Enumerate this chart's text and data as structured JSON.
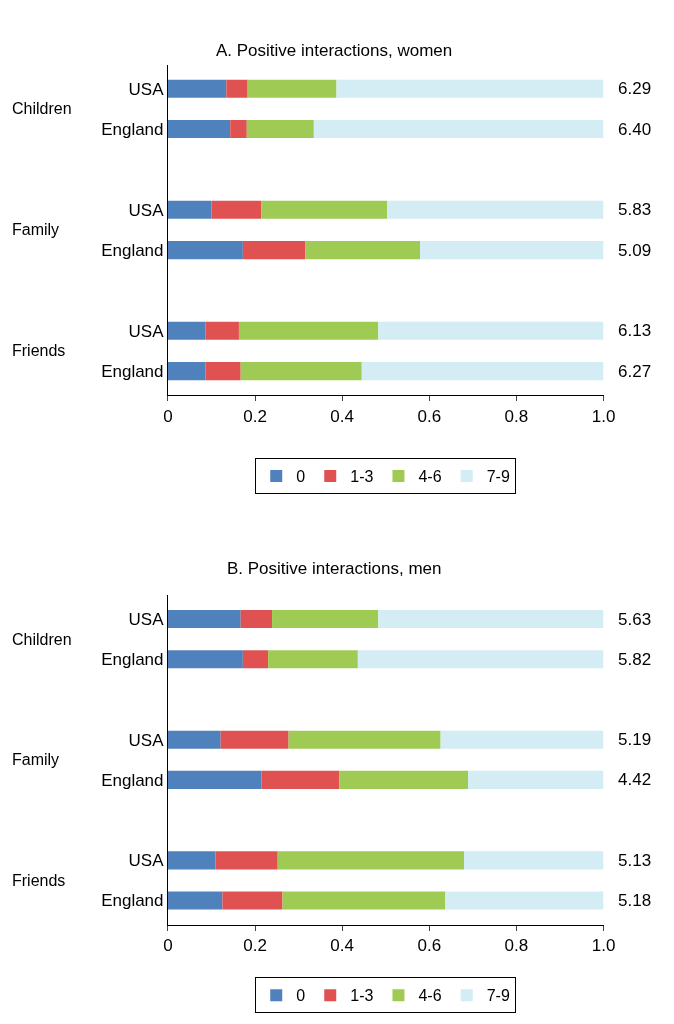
{
  "chart_data": [
    {
      "type": "bar",
      "orientation": "horizontal",
      "stacked": true,
      "title": "A. Positive interactions, women",
      "categories": [
        "USA",
        "England",
        "USA",
        "England",
        "USA",
        "England"
      ],
      "series": [
        {
          "name": "0",
          "color": "#4f81bd",
          "values": [
            0.134,
            0.143,
            0.1,
            0.172,
            0.086,
            0.086
          ]
        },
        {
          "name": "1-3",
          "color": "#e05252",
          "values": [
            0.049,
            0.038,
            0.114,
            0.143,
            0.077,
            0.081
          ]
        },
        {
          "name": "4-6",
          "color": "#9fcb55",
          "values": [
            0.204,
            0.154,
            0.289,
            0.264,
            0.32,
            0.278
          ]
        },
        {
          "name": "7-9",
          "color": "#d4ecf3",
          "values": [
            0.613,
            0.665,
            0.497,
            0.421,
            0.517,
            0.555
          ]
        }
      ],
      "annotations": [
        "Children",
        "Family",
        "Friends",
        "6.29",
        "6.40",
        "5.83",
        "5.09",
        "6.13",
        "6.27"
      ],
      "xlim": [
        0,
        1
      ],
      "xticks": [
        0,
        0.2,
        0.4,
        0.6,
        0.8,
        {
          "value": 1,
          "label": "1.0"
        }
      ],
      "legend": "bottom"
    },
    {
      "type": "bar",
      "orientation": "horizontal",
      "stacked": true,
      "title": "B. Positive interactions, men",
      "categories": [
        "USA",
        "England",
        "USA",
        "England",
        "USA",
        "England"
      ],
      "series": [
        {
          "name": "0",
          "color": "#4f81bd",
          "values": [
            0.167,
            0.172,
            0.121,
            0.215,
            0.109,
            0.125
          ]
        },
        {
          "name": "1-3",
          "color": "#e05252",
          "values": [
            0.072,
            0.058,
            0.156,
            0.178,
            0.143,
            0.138
          ]
        },
        {
          "name": "4-6",
          "color": "#9fcb55",
          "values": [
            0.244,
            0.206,
            0.349,
            0.296,
            0.428,
            0.374
          ]
        },
        {
          "name": "7-9",
          "color": "#d4ecf3",
          "values": [
            0.517,
            0.564,
            0.374,
            0.311,
            0.32,
            0.363
          ]
        }
      ],
      "annotations": [
        "Children",
        "Family",
        "Friends",
        "5.63",
        "5.82",
        "5.19",
        "4.42",
        "5.13",
        "5.18"
      ],
      "xlim": [
        0,
        1
      ],
      "xticks": [
        0,
        0.2,
        0.4,
        0.6,
        0.8,
        {
          "value": 1,
          "label": "1.0"
        }
      ],
      "legend": "bottom"
    }
  ]
}
